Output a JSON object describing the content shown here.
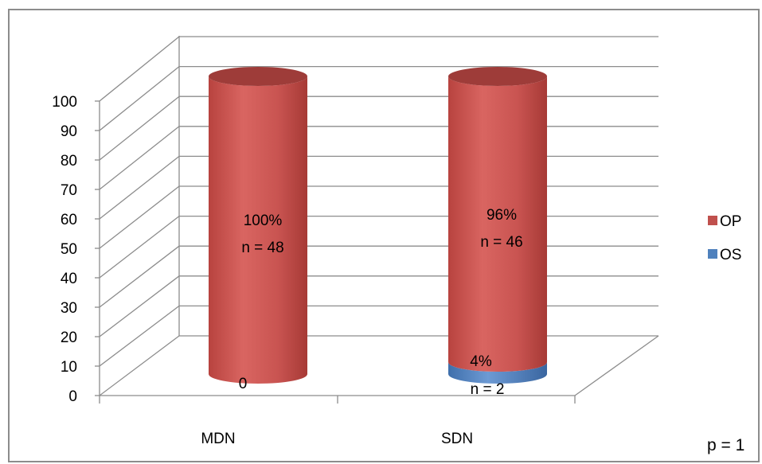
{
  "chart_data": {
    "type": "bar",
    "style": "3d-stacked-cylinder",
    "categories": [
      "MDN",
      "SDN"
    ],
    "series": [
      {
        "name": "OP",
        "values": [
          100,
          96
        ],
        "color": "#c0504d"
      },
      {
        "name": "OS",
        "values": [
          0,
          4
        ],
        "color": "#4f81bd"
      }
    ],
    "ylim": [
      0,
      100
    ],
    "yticks": [
      "0",
      "10",
      "20",
      "30",
      "40",
      "50",
      "60",
      "70",
      "80",
      "90",
      "100"
    ],
    "legend_position": "right",
    "grid": true,
    "data_labels": {
      "MDN": {
        "op_pct": "100%",
        "op_n": "n = 48",
        "os": "0"
      },
      "SDN": {
        "op_pct": "96%",
        "op_n": "n = 46",
        "os_pct": "4%",
        "os_n": "n = 2"
      }
    },
    "annotation": "p = 1"
  }
}
